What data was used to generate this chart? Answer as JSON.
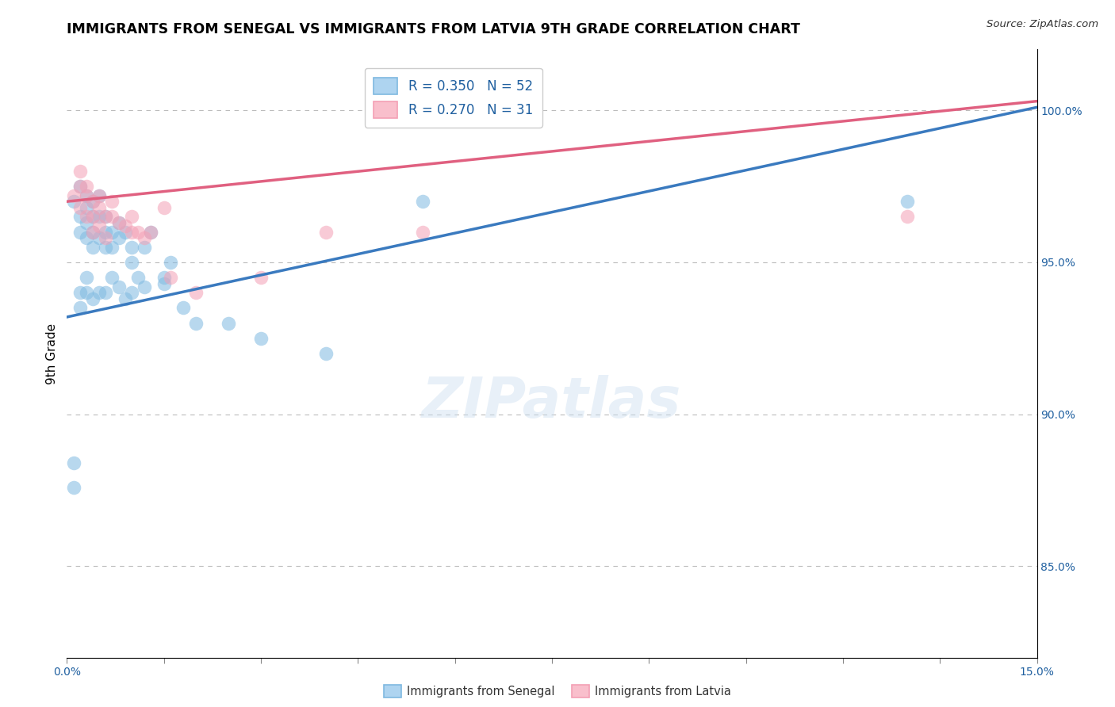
{
  "title": "IMMIGRANTS FROM SENEGAL VS IMMIGRANTS FROM LATVIA 9TH GRADE CORRELATION CHART",
  "source": "Source: ZipAtlas.com",
  "ylabel": "9th Grade",
  "x_min": 0.0,
  "x_max": 0.15,
  "y_min": 0.82,
  "y_max": 1.02,
  "legend_blue_r": "R = 0.350",
  "legend_blue_n": "N = 52",
  "legend_pink_r": "R = 0.270",
  "legend_pink_n": "N = 31",
  "blue_color": "#7fb9e0",
  "pink_color": "#f4a0b5",
  "blue_line_color": "#3a7abf",
  "pink_line_color": "#e06080",
  "grid_color": "#bbbbbb",
  "blue_x": [
    0.001,
    0.002,
    0.002,
    0.002,
    0.003,
    0.003,
    0.003,
    0.003,
    0.004,
    0.004,
    0.004,
    0.004,
    0.005,
    0.005,
    0.005,
    0.006,
    0.006,
    0.006,
    0.007,
    0.007,
    0.008,
    0.008,
    0.009,
    0.01,
    0.01,
    0.011,
    0.012,
    0.013,
    0.015,
    0.016,
    0.018,
    0.02,
    0.025,
    0.03,
    0.04,
    0.055,
    0.13,
    0.001,
    0.001,
    0.002,
    0.002,
    0.003,
    0.003,
    0.004,
    0.005,
    0.006,
    0.007,
    0.008,
    0.009,
    0.01,
    0.012,
    0.015
  ],
  "blue_y": [
    0.97,
    0.965,
    0.975,
    0.96,
    0.968,
    0.963,
    0.958,
    0.972,
    0.96,
    0.965,
    0.97,
    0.955,
    0.965,
    0.958,
    0.972,
    0.965,
    0.96,
    0.955,
    0.96,
    0.955,
    0.958,
    0.963,
    0.96,
    0.95,
    0.955,
    0.945,
    0.955,
    0.96,
    0.945,
    0.95,
    0.935,
    0.93,
    0.93,
    0.925,
    0.92,
    0.97,
    0.97,
    0.884,
    0.876,
    0.94,
    0.935,
    0.945,
    0.94,
    0.938,
    0.94,
    0.94,
    0.945,
    0.942,
    0.938,
    0.94,
    0.942,
    0.943
  ],
  "pink_x": [
    0.001,
    0.002,
    0.002,
    0.003,
    0.003,
    0.003,
    0.004,
    0.004,
    0.004,
    0.005,
    0.005,
    0.005,
    0.006,
    0.006,
    0.007,
    0.007,
    0.008,
    0.009,
    0.01,
    0.01,
    0.011,
    0.012,
    0.013,
    0.015,
    0.016,
    0.02,
    0.03,
    0.04,
    0.055,
    0.13,
    0.002
  ],
  "pink_y": [
    0.972,
    0.975,
    0.968,
    0.972,
    0.965,
    0.975,
    0.97,
    0.965,
    0.96,
    0.968,
    0.962,
    0.972,
    0.965,
    0.958,
    0.965,
    0.97,
    0.963,
    0.962,
    0.965,
    0.96,
    0.96,
    0.958,
    0.96,
    0.968,
    0.945,
    0.94,
    0.945,
    0.96,
    0.96,
    0.965,
    0.98
  ],
  "yticks": [
    0.85,
    0.9,
    0.95,
    1.0
  ],
  "ytick_labels": [
    "85.0%",
    "90.0%",
    "95.0%",
    "100.0%"
  ]
}
